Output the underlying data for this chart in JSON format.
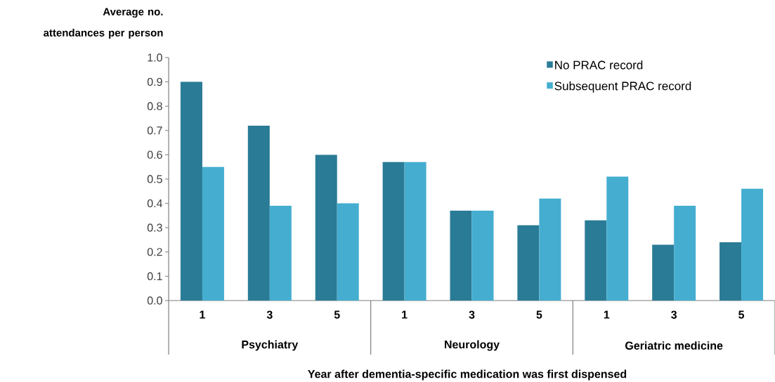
{
  "chart_data": {
    "type": "bar",
    "ylabel": "Average no. attendances per person",
    "xlabel": "Year after dementia-specific  medication  was first dispensed",
    "categories": [
      "1",
      "3",
      "5",
      "1",
      "3",
      "5",
      "1",
      "3",
      "5"
    ],
    "series": [
      {
        "name": "No PRAC record",
        "color": "#2a7b96",
        "values": [
          0.9,
          0.72,
          0.6,
          0.57,
          0.37,
          0.31,
          0.33,
          0.23,
          0.24
        ]
      },
      {
        "name": "Subsequent PRAC record",
        "color": "#45aed0",
        "values": [
          0.55,
          0.39,
          0.4,
          0.57,
          0.37,
          0.42,
          0.51,
          0.39,
          0.46
        ]
      }
    ],
    "annotations": [
      "Psychiatry",
      "Neurology",
      "Geriatric medicine"
    ],
    "ylim": [
      0,
      1.0
    ],
    "yticks": [
      {
        "value": 0,
        "label": "0.0"
      },
      0.1,
      0.2,
      0.3,
      0.4,
      0.5,
      0.6,
      0.7,
      0.8,
      0.9,
      {
        "value": 1,
        "label": "1.0"
      }
    ],
    "legend": "top right",
    "grid": false
  }
}
